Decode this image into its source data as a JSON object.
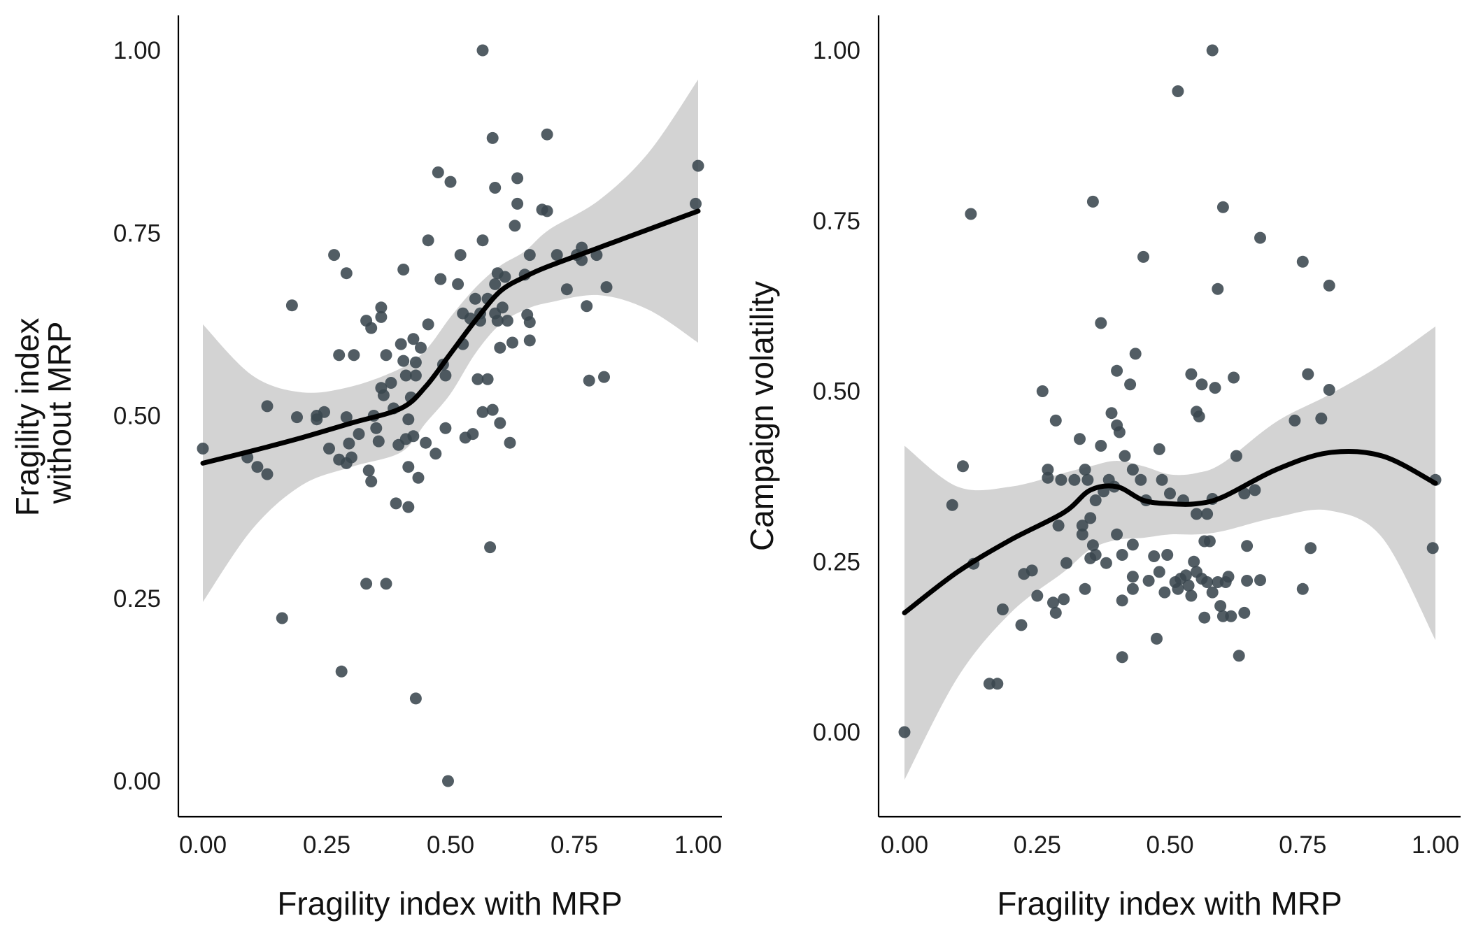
{
  "theme": {
    "point_color": "#3a474f",
    "point_opacity": 0.88,
    "ribbon_color": "#d3d3d3",
    "line_color": "#000000"
  },
  "chart_data": [
    {
      "type": "scatter",
      "xlabel": "Fragility index with MRP",
      "ylabel_lines": [
        "Fragility index",
        "without MRP"
      ],
      "xlim": [
        0,
        1
      ],
      "ylim": [
        -0.05,
        1.05
      ],
      "xticks": [
        0,
        0.25,
        0.5,
        0.75,
        1
      ],
      "xtick_labels": [
        "0.00",
        "0.25",
        "0.50",
        "0.75",
        "1.00"
      ],
      "yticks": [
        0,
        0.25,
        0.5,
        0.75,
        1
      ],
      "ytick_labels": [
        "0.00",
        "0.25",
        "0.50",
        "0.75",
        "1.00"
      ],
      "grid": false,
      "points": [
        [
          0.0,
          0.455
        ],
        [
          0.09,
          0.443
        ],
        [
          0.11,
          0.43
        ],
        [
          0.13,
          0.42
        ],
        [
          0.13,
          0.513
        ],
        [
          0.16,
          0.223
        ],
        [
          0.18,
          0.651
        ],
        [
          0.19,
          0.498
        ],
        [
          0.23,
          0.495
        ],
        [
          0.23,
          0.5
        ],
        [
          0.245,
          0.505
        ],
        [
          0.255,
          0.455
        ],
        [
          0.265,
          0.72
        ],
        [
          0.275,
          0.583
        ],
        [
          0.275,
          0.44
        ],
        [
          0.28,
          0.15
        ],
        [
          0.29,
          0.498
        ],
        [
          0.29,
          0.435
        ],
        [
          0.29,
          0.695
        ],
        [
          0.295,
          0.462
        ],
        [
          0.3,
          0.443
        ],
        [
          0.305,
          0.583
        ],
        [
          0.315,
          0.475
        ],
        [
          0.33,
          0.63
        ],
        [
          0.33,
          0.27
        ],
        [
          0.335,
          0.425
        ],
        [
          0.34,
          0.62
        ],
        [
          0.34,
          0.41
        ],
        [
          0.345,
          0.5
        ],
        [
          0.35,
          0.483
        ],
        [
          0.355,
          0.465
        ],
        [
          0.36,
          0.648
        ],
        [
          0.36,
          0.635
        ],
        [
          0.36,
          0.538
        ],
        [
          0.365,
          0.528
        ],
        [
          0.37,
          0.583
        ],
        [
          0.37,
          0.27
        ],
        [
          0.38,
          0.545
        ],
        [
          0.385,
          0.51
        ],
        [
          0.39,
          0.38
        ],
        [
          0.395,
          0.46
        ],
        [
          0.4,
          0.598
        ],
        [
          0.405,
          0.7
        ],
        [
          0.405,
          0.575
        ],
        [
          0.41,
          0.468
        ],
        [
          0.41,
          0.555
        ],
        [
          0.415,
          0.43
        ],
        [
          0.415,
          0.375
        ],
        [
          0.415,
          0.495
        ],
        [
          0.42,
          0.525
        ],
        [
          0.425,
          0.472
        ],
        [
          0.425,
          0.605
        ],
        [
          0.43,
          0.573
        ],
        [
          0.43,
          0.555
        ],
        [
          0.43,
          0.113
        ],
        [
          0.435,
          0.415
        ],
        [
          0.44,
          0.593
        ],
        [
          0.45,
          0.463
        ],
        [
          0.455,
          0.74
        ],
        [
          0.455,
          0.625
        ],
        [
          0.47,
          0.448
        ],
        [
          0.475,
          0.833
        ],
        [
          0.48,
          0.687
        ],
        [
          0.485,
          0.57
        ],
        [
          0.49,
          0.483
        ],
        [
          0.49,
          0.555
        ],
        [
          0.495,
          0.0
        ],
        [
          0.5,
          0.82
        ],
        [
          0.515,
          0.68
        ],
        [
          0.52,
          0.72
        ],
        [
          0.525,
          0.64
        ],
        [
          0.525,
          0.598
        ],
        [
          0.53,
          0.47
        ],
        [
          0.54,
          0.633
        ],
        [
          0.545,
          0.475
        ],
        [
          0.55,
          0.66
        ],
        [
          0.555,
          0.55
        ],
        [
          0.56,
          0.63
        ],
        [
          0.56,
          0.64
        ],
        [
          0.565,
          0.74
        ],
        [
          0.565,
          0.505
        ],
        [
          0.565,
          1.0
        ],
        [
          0.575,
          0.66
        ],
        [
          0.575,
          0.55
        ],
        [
          0.58,
          0.32
        ],
        [
          0.585,
          0.88
        ],
        [
          0.585,
          0.508
        ],
        [
          0.59,
          0.64
        ],
        [
          0.59,
          0.812
        ],
        [
          0.59,
          0.68
        ],
        [
          0.595,
          0.63
        ],
        [
          0.595,
          0.695
        ],
        [
          0.6,
          0.593
        ],
        [
          0.6,
          0.49
        ],
        [
          0.605,
          0.648
        ],
        [
          0.61,
          0.69
        ],
        [
          0.615,
          0.63
        ],
        [
          0.62,
          0.463
        ],
        [
          0.625,
          0.6
        ],
        [
          0.63,
          0.76
        ],
        [
          0.635,
          0.825
        ],
        [
          0.635,
          0.79
        ],
        [
          0.65,
          0.693
        ],
        [
          0.655,
          0.638
        ],
        [
          0.66,
          0.603
        ],
        [
          0.66,
          0.628
        ],
        [
          0.66,
          0.72
        ],
        [
          0.685,
          0.782
        ],
        [
          0.695,
          0.885
        ],
        [
          0.695,
          0.78
        ],
        [
          0.715,
          0.72
        ],
        [
          0.735,
          0.673
        ],
        [
          0.755,
          0.72
        ],
        [
          0.765,
          0.713
        ],
        [
          0.765,
          0.73
        ],
        [
          0.775,
          0.65
        ],
        [
          0.78,
          0.548
        ],
        [
          0.795,
          0.72
        ],
        [
          0.81,
          0.553
        ],
        [
          0.815,
          0.676
        ],
        [
          1.0,
          0.842
        ],
        [
          0.995,
          0.79
        ]
      ],
      "smooth_x": [
        0,
        0.1,
        0.2,
        0.3,
        0.4,
        0.45,
        0.5,
        0.55,
        0.6,
        0.65,
        0.7,
        0.8,
        0.9,
        1.0
      ],
      "smooth_y": [
        0.435,
        0.452,
        0.47,
        0.49,
        0.51,
        0.54,
        0.585,
        0.63,
        0.67,
        0.69,
        0.705,
        0.73,
        0.755,
        0.78
      ],
      "ci_lower": [
        0.245,
        0.345,
        0.405,
        0.43,
        0.45,
        0.49,
        0.53,
        0.585,
        0.625,
        0.645,
        0.655,
        0.665,
        0.645,
        0.6
      ],
      "ci_upper": [
        0.625,
        0.555,
        0.532,
        0.54,
        0.565,
        0.59,
        0.635,
        0.675,
        0.705,
        0.725,
        0.755,
        0.795,
        0.86,
        0.96
      ]
    },
    {
      "type": "scatter",
      "xlabel": "Fragility index with MRP",
      "ylabel_lines": [
        "Campaign volatility"
      ],
      "xlim": [
        0,
        1
      ],
      "ylim": [
        -0.12,
        1.05
      ],
      "xticks": [
        0,
        0.25,
        0.5,
        0.75,
        1
      ],
      "xtick_labels": [
        "0.00",
        "0.25",
        "0.50",
        "0.75",
        "1.00"
      ],
      "yticks": [
        0,
        0.25,
        0.5,
        0.75,
        1
      ],
      "ytick_labels": [
        "0.00",
        "0.25",
        "0.50",
        "0.75",
        "1.00"
      ],
      "grid": false,
      "points": [
        [
          0.0,
          0.0
        ],
        [
          0.09,
          0.333
        ],
        [
          0.11,
          0.39
        ],
        [
          0.125,
          0.76
        ],
        [
          0.13,
          0.247
        ],
        [
          0.16,
          0.071
        ],
        [
          0.175,
          0.071
        ],
        [
          0.185,
          0.18
        ],
        [
          0.22,
          0.157
        ],
        [
          0.225,
          0.232
        ],
        [
          0.24,
          0.237
        ],
        [
          0.25,
          0.2
        ],
        [
          0.26,
          0.5
        ],
        [
          0.27,
          0.385
        ],
        [
          0.27,
          0.373
        ],
        [
          0.28,
          0.19
        ],
        [
          0.285,
          0.175
        ],
        [
          0.285,
          0.457
        ],
        [
          0.29,
          0.303
        ],
        [
          0.295,
          0.37
        ],
        [
          0.3,
          0.195
        ],
        [
          0.305,
          0.248
        ],
        [
          0.32,
          0.37
        ],
        [
          0.33,
          0.43
        ],
        [
          0.335,
          0.303
        ],
        [
          0.335,
          0.29
        ],
        [
          0.34,
          0.21
        ],
        [
          0.34,
          0.385
        ],
        [
          0.345,
          0.37
        ],
        [
          0.35,
          0.314
        ],
        [
          0.35,
          0.255
        ],
        [
          0.355,
          0.778
        ],
        [
          0.355,
          0.274
        ],
        [
          0.36,
          0.26
        ],
        [
          0.36,
          0.34
        ],
        [
          0.37,
          0.6
        ],
        [
          0.37,
          0.42
        ],
        [
          0.375,
          0.353
        ],
        [
          0.38,
          0.248
        ],
        [
          0.385,
          0.37
        ],
        [
          0.39,
          0.468
        ],
        [
          0.395,
          0.36
        ],
        [
          0.4,
          0.53
        ],
        [
          0.4,
          0.45
        ],
        [
          0.4,
          0.29
        ],
        [
          0.405,
          0.44
        ],
        [
          0.41,
          0.26
        ],
        [
          0.41,
          0.193
        ],
        [
          0.41,
          0.11
        ],
        [
          0.415,
          0.405
        ],
        [
          0.425,
          0.51
        ],
        [
          0.43,
          0.385
        ],
        [
          0.43,
          0.275
        ],
        [
          0.43,
          0.228
        ],
        [
          0.43,
          0.21
        ],
        [
          0.435,
          0.555
        ],
        [
          0.445,
          0.37
        ],
        [
          0.45,
          0.697
        ],
        [
          0.455,
          0.34
        ],
        [
          0.46,
          0.222
        ],
        [
          0.47,
          0.258
        ],
        [
          0.475,
          0.137
        ],
        [
          0.48,
          0.415
        ],
        [
          0.48,
          0.235
        ],
        [
          0.485,
          0.37
        ],
        [
          0.49,
          0.205
        ],
        [
          0.495,
          0.26
        ],
        [
          0.5,
          0.35
        ],
        [
          0.51,
          0.22
        ],
        [
          0.515,
          0.94
        ],
        [
          0.515,
          0.21
        ],
        [
          0.52,
          0.225
        ],
        [
          0.525,
          0.34
        ],
        [
          0.53,
          0.23
        ],
        [
          0.535,
          0.215
        ],
        [
          0.54,
          0.525
        ],
        [
          0.54,
          0.2
        ],
        [
          0.545,
          0.25
        ],
        [
          0.55,
          0.47
        ],
        [
          0.55,
          0.235
        ],
        [
          0.55,
          0.32
        ],
        [
          0.555,
          0.463
        ],
        [
          0.56,
          0.51
        ],
        [
          0.56,
          0.225
        ],
        [
          0.565,
          0.168
        ],
        [
          0.565,
          0.28
        ],
        [
          0.57,
          0.22
        ],
        [
          0.57,
          0.32
        ],
        [
          0.575,
          0.28
        ],
        [
          0.58,
          1.0
        ],
        [
          0.58,
          0.205
        ],
        [
          0.58,
          0.342
        ],
        [
          0.585,
          0.505
        ],
        [
          0.59,
          0.65
        ],
        [
          0.59,
          0.22
        ],
        [
          0.595,
          0.185
        ],
        [
          0.6,
          0.77
        ],
        [
          0.6,
          0.17
        ],
        [
          0.605,
          0.22
        ],
        [
          0.61,
          0.228
        ],
        [
          0.615,
          0.17
        ],
        [
          0.62,
          0.52
        ],
        [
          0.625,
          0.405
        ],
        [
          0.63,
          0.112
        ],
        [
          0.64,
          0.35
        ],
        [
          0.64,
          0.175
        ],
        [
          0.645,
          0.273
        ],
        [
          0.645,
          0.222
        ],
        [
          0.66,
          0.355
        ],
        [
          0.67,
          0.725
        ],
        [
          0.67,
          0.223
        ],
        [
          0.735,
          0.457
        ],
        [
          0.75,
          0.69
        ],
        [
          0.75,
          0.21
        ],
        [
          0.76,
          0.525
        ],
        [
          0.765,
          0.27
        ],
        [
          0.785,
          0.46
        ],
        [
          0.8,
          0.655
        ],
        [
          0.8,
          0.502
        ],
        [
          1.0,
          0.37
        ],
        [
          0.995,
          0.27
        ]
      ],
      "smooth_x": [
        0,
        0.1,
        0.2,
        0.3,
        0.35,
        0.4,
        0.45,
        0.5,
        0.55,
        0.6,
        0.7,
        0.8,
        0.9,
        1.0
      ],
      "smooth_y": [
        0.175,
        0.235,
        0.282,
        0.322,
        0.355,
        0.36,
        0.34,
        0.335,
        0.335,
        0.345,
        0.385,
        0.41,
        0.405,
        0.365
      ],
      "ci_lower": [
        -0.07,
        0.08,
        0.175,
        0.235,
        0.268,
        0.282,
        0.285,
        0.29,
        0.29,
        0.295,
        0.315,
        0.325,
        0.285,
        0.135
      ],
      "ci_upper": [
        0.42,
        0.36,
        0.36,
        0.38,
        0.39,
        0.398,
        0.39,
        0.378,
        0.38,
        0.395,
        0.455,
        0.495,
        0.54,
        0.595
      ]
    }
  ]
}
